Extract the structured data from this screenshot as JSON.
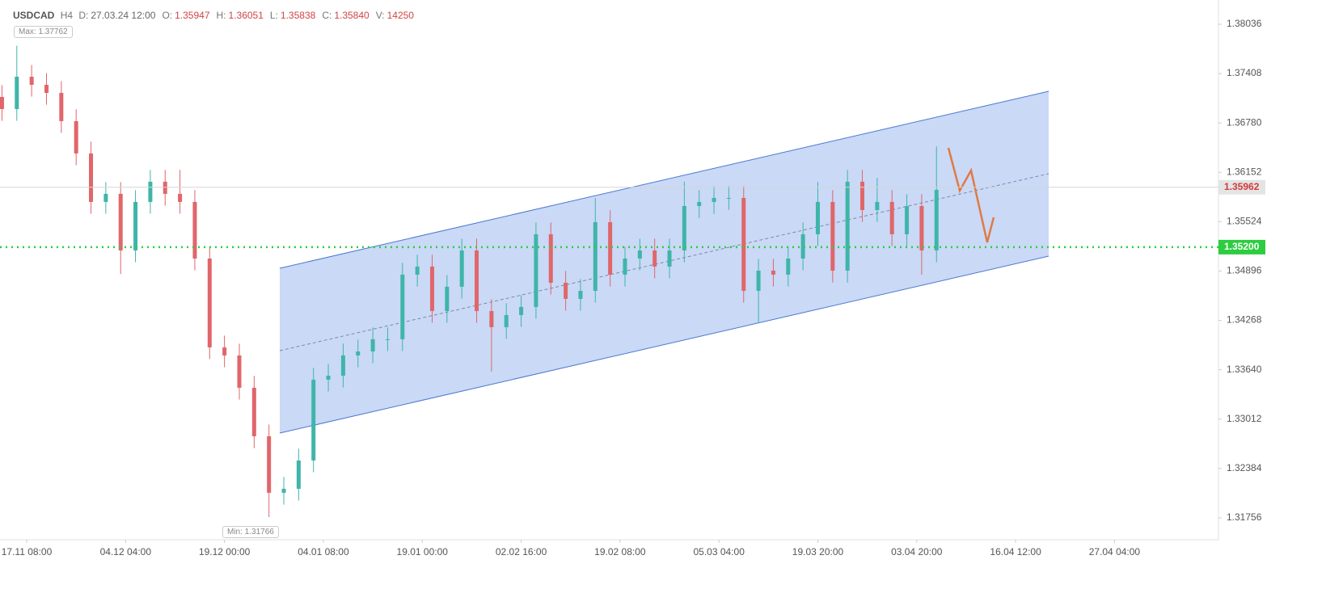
{
  "header": {
    "symbol": "USDCAD",
    "timeframe": "H4",
    "info": [
      {
        "label": "D:",
        "value": "27.03.24 12:00"
      },
      {
        "label": "O:",
        "value": "1.35947"
      },
      {
        "label": "H:",
        "value": "1.36051"
      },
      {
        "label": "L:",
        "value": "1.35838"
      },
      {
        "label": "C:",
        "value": "1.35840"
      },
      {
        "label": "V:",
        "value": "14250"
      }
    ]
  },
  "max_label": "Max: 1.37762",
  "min_label": "Min: 1.31766",
  "chart_data": {
    "type": "candlestick",
    "up_color": "#3fb5a9",
    "down_color": "#e0666a",
    "x": [
      -5,
      -2,
      1,
      4,
      7,
      10,
      13,
      16,
      19,
      22,
      25,
      28,
      31,
      34,
      37,
      40,
      43,
      46,
      49,
      52,
      55,
      58,
      61,
      64,
      67,
      70,
      73,
      76,
      79,
      82,
      85,
      88,
      91,
      94,
      97,
      100,
      103,
      106,
      109,
      112,
      115,
      118,
      121,
      124,
      127,
      130,
      133,
      136,
      139,
      142,
      145,
      148,
      151,
      154,
      157,
      160,
      163,
      166,
      169,
      172,
      175,
      178,
      181,
      184
    ],
    "open": [
      1.37111,
      1.36957,
      1.37368,
      1.37265,
      1.37162,
      1.36803,
      1.36392,
      1.35775,
      1.35878,
      1.35158,
      1.35775,
      1.36032,
      1.35878,
      1.35775,
      1.35055,
      1.33925,
      1.33822,
      1.33411,
      1.32794,
      1.32075,
      1.32126,
      1.32486,
      1.33514,
      1.33565,
      1.33822,
      1.33873,
      1.34028,
      1.34028,
      1.3485,
      1.34953,
      1.34387,
      1.34696,
      1.35158,
      1.34387,
      1.34182,
      1.34336,
      1.34439,
      1.35364,
      1.34747,
      1.34542,
      1.34644,
      1.35518,
      1.3485,
      1.35055,
      1.35158,
      1.34953,
      1.35158,
      1.35723,
      1.35775,
      1.35826,
      1.35826,
      1.34644,
      1.34901,
      1.3485,
      1.35055,
      1.35364,
      1.35775,
      1.34901,
      1.36032,
      1.35672,
      1.35775,
      1.35364,
      1.35723,
      1.35158
    ],
    "high": [
      1.37261,
      1.37762,
      1.37518,
      1.37415,
      1.37312,
      1.36953,
      1.36542,
      1.36028,
      1.36028,
      1.35925,
      1.36182,
      1.36182,
      1.36182,
      1.35925,
      1.35205,
      1.34075,
      1.33972,
      1.33561,
      1.32944,
      1.32276,
      1.32636,
      1.33664,
      1.33715,
      1.33972,
      1.34023,
      1.34178,
      1.34178,
      1.35,
      1.35103,
      1.35103,
      1.34846,
      1.35308,
      1.35308,
      1.34537,
      1.34486,
      1.34589,
      1.35514,
      1.35514,
      1.34897,
      1.34794,
      1.35826,
      1.35668,
      1.35205,
      1.35308,
      1.35308,
      1.35308,
      1.36032,
      1.35925,
      1.35976,
      1.35976,
      1.35976,
      1.35051,
      1.35051,
      1.35205,
      1.35514,
      1.36032,
      1.35925,
      1.36182,
      1.36182,
      1.3608,
      1.35925,
      1.35873,
      1.35873,
      1.36481
    ],
    "low": [
      1.36807,
      1.36807,
      1.37115,
      1.37012,
      1.36653,
      1.36242,
      1.35625,
      1.35625,
      1.34858,
      1.35008,
      1.35625,
      1.35728,
      1.35625,
      1.34905,
      1.33775,
      1.33672,
      1.33261,
      1.32644,
      1.31766,
      1.31925,
      1.31976,
      1.32336,
      1.33364,
      1.33415,
      1.33672,
      1.33723,
      1.33878,
      1.33878,
      1.347,
      1.34237,
      1.34237,
      1.34546,
      1.34237,
      1.33617,
      1.34032,
      1.34186,
      1.34289,
      1.34597,
      1.34392,
      1.34392,
      1.34494,
      1.347,
      1.347,
      1.34905,
      1.34803,
      1.34803,
      1.35008,
      1.35573,
      1.35625,
      1.35676,
      1.34494,
      1.34233,
      1.347,
      1.347,
      1.34905,
      1.35214,
      1.34751,
      1.34751,
      1.35522,
      1.35522,
      1.35214,
      1.35214,
      1.3485,
      1.35008
    ],
    "close": [
      1.36957,
      1.37368,
      1.37265,
      1.37162,
      1.36803,
      1.36392,
      1.35775,
      1.35878,
      1.35158,
      1.35775,
      1.36032,
      1.35878,
      1.35775,
      1.35055,
      1.33925,
      1.33822,
      1.33411,
      1.32794,
      1.32075,
      1.32126,
      1.32486,
      1.33514,
      1.33565,
      1.33822,
      1.33873,
      1.34028,
      1.34028,
      1.3485,
      1.34953,
      1.34387,
      1.34696,
      1.35158,
      1.34387,
      1.34182,
      1.34336,
      1.34439,
      1.35364,
      1.34747,
      1.34542,
      1.34644,
      1.35518,
      1.3485,
      1.35055,
      1.35158,
      1.34953,
      1.35158,
      1.35723,
      1.35775,
      1.35826,
      1.35826,
      1.34644,
      1.34901,
      1.3485,
      1.35055,
      1.35364,
      1.35775,
      1.34901,
      1.36032,
      1.35672,
      1.35775,
      1.35364,
      1.35723,
      1.35158,
      1.35929
    ],
    "xlim": [
      -5.4,
      240.7
    ],
    "xticks": [
      {
        "value": 0,
        "label": "17.11 08:00"
      },
      {
        "value": 20,
        "label": "04.12 04:00"
      },
      {
        "value": 40,
        "label": "19.12 00:00"
      },
      {
        "value": 60,
        "label": "04.01 08:00"
      },
      {
        "value": 80,
        "label": "19.01 00:00"
      },
      {
        "value": 100,
        "label": "02.02 16:00"
      },
      {
        "value": 120,
        "label": "19.02 08:00"
      },
      {
        "value": 140,
        "label": "05.03 04:00"
      },
      {
        "value": 160,
        "label": "19.03 20:00"
      },
      {
        "value": 180,
        "label": "03.04 20:00"
      },
      {
        "value": 200,
        "label": "16.04 12:00"
      },
      {
        "value": 220,
        "label": "27.04 04:00"
      }
    ],
    "ylim": [
      1.31478,
      1.38344
    ],
    "yticks": [
      1.31756,
      1.32384,
      1.33012,
      {
        "value": 1.3364,
        "label": "1.33640"
      },
      1.34268,
      1.34896,
      1.35524,
      1.36152,
      {
        "value": 1.3678,
        "label": "1.36780"
      },
      1.37408,
      1.38036
    ],
    "price_line": {
      "value": 1.35962,
      "color": "#d23c3c"
    },
    "level_line": {
      "value": 1.352,
      "label": "1.35200",
      "color": "#2ecc40"
    }
  }
}
